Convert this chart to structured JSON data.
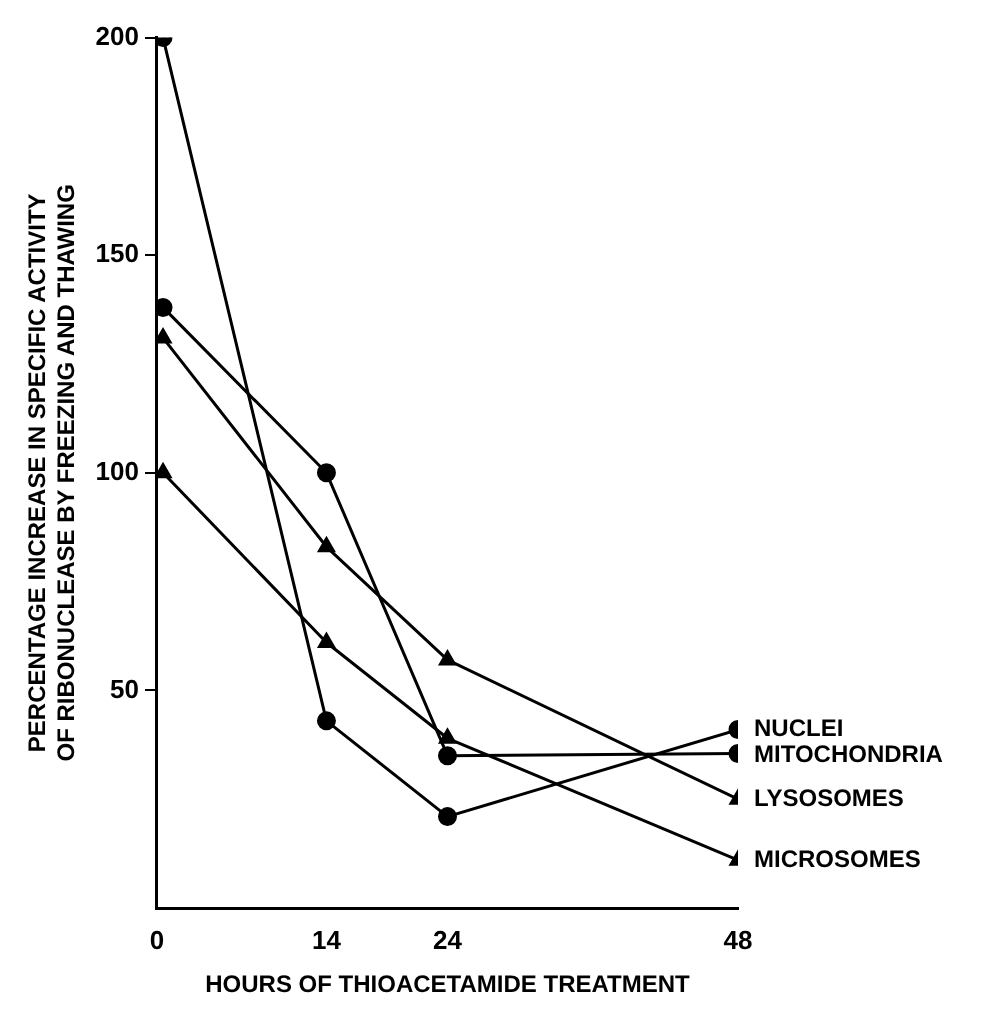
{
  "chart_data": {
    "type": "line",
    "xlabel": "HOURS OF THIOACETAMIDE TREATMENT",
    "ylabel": "PERCENTAGE INCREASE IN SPECIFIC ACTIVITY\nOF RIBONUCLEASE BY FREEZING AND THAWING",
    "xlim": [
      0,
      48
    ],
    "xticks": [
      0,
      14,
      24,
      48
    ],
    "ylim": [
      0,
      200
    ],
    "yticks": [
      50,
      100,
      150,
      200
    ],
    "grid": false,
    "legend": false,
    "line_style": "solid",
    "x": [
      0.5,
      14,
      24,
      48
    ],
    "series": [
      {
        "name": "NUCLEI",
        "color": "#000000",
        "marker": "circle",
        "values": [
          200,
          43,
          21,
          41
        ]
      },
      {
        "name": "MITOCHONDRIA",
        "color": "#000000",
        "marker": "circle",
        "values": [
          138,
          100,
          35,
          35.5
        ]
      },
      {
        "name": "LYSOSOMES",
        "color": "#000000",
        "marker": "triangle",
        "values": [
          131,
          83,
          57,
          25
        ]
      },
      {
        "name": "MICROSOMES",
        "color": "#000000",
        "marker": "triangle",
        "values": [
          100,
          61,
          39,
          11
        ]
      }
    ]
  }
}
